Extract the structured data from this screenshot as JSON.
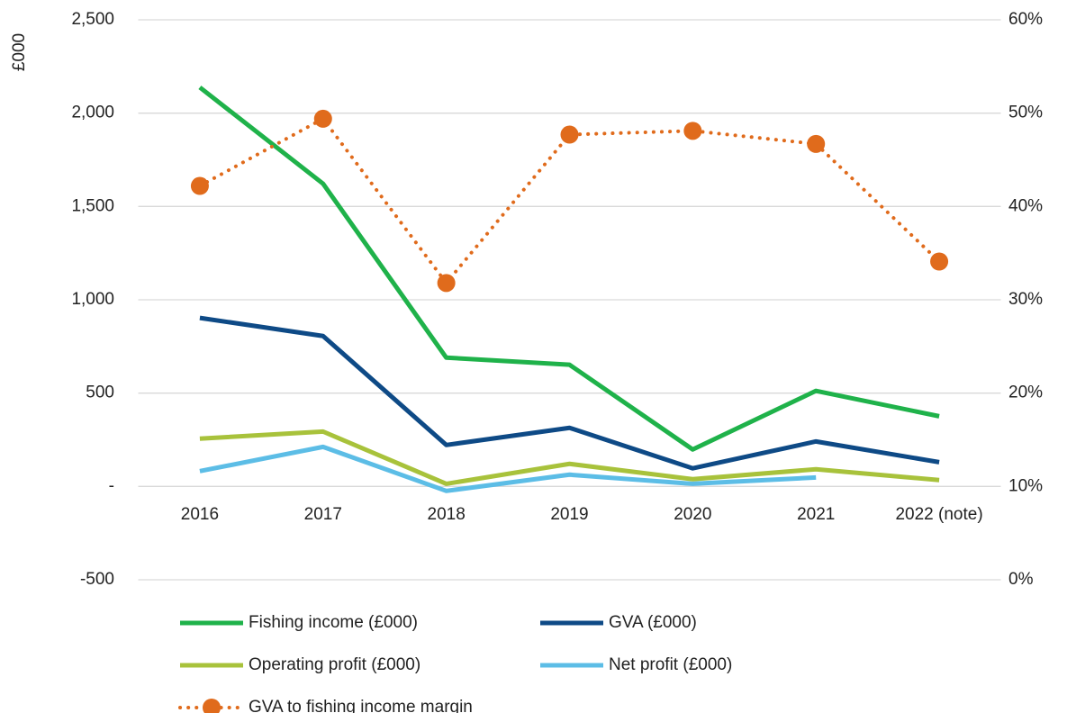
{
  "chart_data": {
    "type": "line",
    "y_label": "£000",
    "categories": [
      "2016",
      "2017",
      "2018",
      "2019",
      "2020",
      "2021",
      "2022 (note)"
    ],
    "series": [
      {
        "name": "Fishing income (£000)",
        "color": "#1fb24a",
        "values": [
          2138,
          1622,
          690,
          652,
          198,
          512,
          376
        ]
      },
      {
        "name": "GVA (£000)",
        "color": "#0e4a86",
        "values": [
          903,
          806,
          222,
          314,
          97,
          241,
          130
        ]
      },
      {
        "name": "Operating profit (£000)",
        "color": "#a8c23b",
        "values": [
          256,
          294,
          14,
          121,
          39,
          92,
          34
        ]
      },
      {
        "name": "Net profit (£000)",
        "color": "#5cbde6",
        "values": [
          82,
          212,
          -24,
          63,
          14,
          48,
          null
        ]
      },
      {
        "name": "GVA to fishing income margin",
        "color": "#e06b1c",
        "axis": "y2",
        "style": "dotted-markers",
        "values": [
          42.2,
          49.4,
          31.8,
          47.7,
          48.1,
          46.7,
          34.1
        ]
      }
    ],
    "ylim": [
      -500,
      2500
    ],
    "yticks": [
      {
        "value": -500,
        "label": "-500"
      },
      {
        "value": 0,
        "label": "-"
      },
      500,
      {
        "value": 1000,
        "label": "1,000"
      },
      {
        "value": 1500,
        "label": "1,500"
      },
      {
        "value": 2000,
        "label": "2,000"
      },
      {
        "value": 2500,
        "label": "2,500"
      }
    ],
    "y2lim": [
      0,
      60
    ],
    "y2ticks": [
      {
        "value": 0,
        "label": "0%"
      },
      {
        "value": 10,
        "label": "10%"
      },
      {
        "value": 20,
        "label": "20%"
      },
      {
        "value": 30,
        "label": "30%"
      },
      {
        "value": 40,
        "label": "40%"
      },
      {
        "value": 50,
        "label": "50%"
      },
      {
        "value": 60,
        "label": "60%"
      }
    ],
    "grid": true,
    "legend": "bottom"
  }
}
